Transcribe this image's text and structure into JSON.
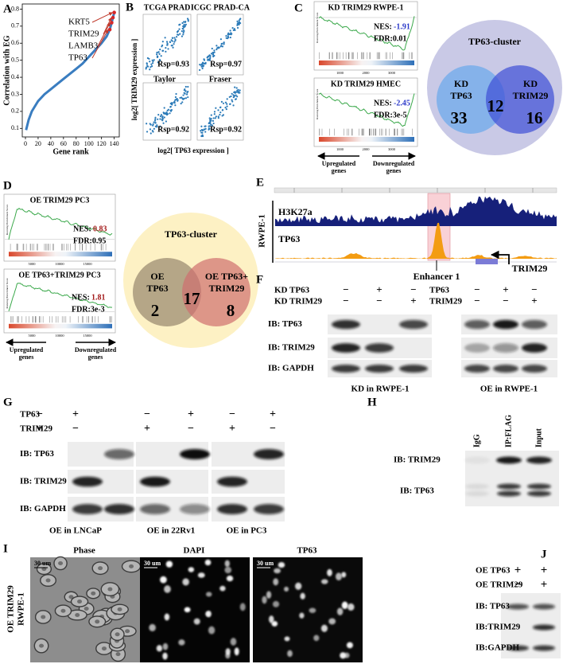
{
  "panels": {
    "A": {
      "letter": "A",
      "ylabel": "Correlation with EG",
      "xlabel": "Gene rank",
      "xlim": [
        -5,
        148
      ],
      "ylim": [
        0.05,
        0.83
      ],
      "xticks": [
        0,
        20,
        40,
        60,
        80,
        100,
        120,
        140
      ],
      "yticks": [
        0.1,
        0.2,
        0.3,
        0.4,
        0.5,
        0.6,
        0.7,
        0.8
      ],
      "genes": [
        "KRT5",
        "TRIM29",
        "LAMB3",
        "TP63"
      ],
      "curve": {
        "x": [
          1,
          5,
          10,
          20,
          30,
          40,
          50,
          60,
          70,
          80,
          90,
          100,
          110,
          120,
          128,
          133,
          136,
          138,
          140
        ],
        "y": [
          0.09,
          0.15,
          0.2,
          0.26,
          0.3,
          0.33,
          0.36,
          0.39,
          0.42,
          0.45,
          0.48,
          0.52,
          0.56,
          0.6,
          0.64,
          0.68,
          0.72,
          0.75,
          0.78
        ]
      }
    },
    "B": {
      "letter": "B",
      "columns": [
        "TCGA PRAD",
        "ICGC PRAD-CA"
      ],
      "datasets": [
        "Taylor",
        "Fraser"
      ],
      "stats": [
        "Rsp=0.93",
        "Rsp=0.97",
        "Rsp=0.92",
        "Rsp=0.92"
      ],
      "ylabel": "log2[ TRIM29 expression ]",
      "xlabel": "log2[ TP63 expression ]"
    },
    "C": {
      "letter": "C",
      "ylabel": "Running Enrichment Score",
      "xticks": [
        1000,
        2000,
        3000
      ],
      "gsea": [
        {
          "title": "KD TRIM29 RWPE-1",
          "nes_label": "NES:",
          "nes": -1.91,
          "fdr": "FDR:0.01"
        },
        {
          "title": "KD TRIM29 HMEC",
          "nes_label": "NES:",
          "nes": -2.45,
          "fdr": "FDR:3e-5"
        }
      ],
      "left_arrow": [
        "Upregulated",
        "genes"
      ],
      "right_arrow": [
        "Downregulated",
        "genes"
      ],
      "venn": {
        "title": "TP63-cluster",
        "left": [
          "KD",
          "TP63"
        ],
        "right": [
          "KD",
          "TRIM29"
        ],
        "counts": [
          33,
          12,
          16
        ]
      }
    },
    "D": {
      "letter": "D",
      "ylabel": "Running Enrichment Score",
      "xticks": [
        5000,
        10000,
        15000
      ],
      "gsea": [
        {
          "title": "OE TRIM29 PC3",
          "nes_label": "NES:",
          "nes": 0.83,
          "fdr": "FDR:0.95"
        },
        {
          "title": "OE TP63+TRIM29 PC3",
          "nes_label": "NES:",
          "nes": 1.81,
          "fdr": "FDR:3e-3"
        }
      ],
      "left_arrow": [
        "Upregulated",
        "genes"
      ],
      "right_arrow": [
        "Downregulated",
        "genes"
      ],
      "venn": {
        "title": "TP63-cluster",
        "left": [
          "OE",
          "TP63"
        ],
        "right": [
          "OE TP63+",
          "TRIM29"
        ],
        "counts": [
          2,
          17,
          8
        ]
      }
    },
    "E": {
      "letter": "E",
      "cell": "RWPE-1",
      "tracks": [
        "H3K27a",
        "TP63"
      ],
      "gene": "TRIM29",
      "region": "Enhancer 1"
    },
    "F": {
      "letter": "F",
      "kd": {
        "rows": [
          {
            "label": "KD TP63",
            "signs": [
              "−",
              "+",
              "−"
            ]
          },
          {
            "label": "KD TRIM29",
            "signs": [
              "−",
              "−",
              "+"
            ]
          }
        ],
        "caption": "KD in RWPE-1"
      },
      "oe": {
        "rows": [
          {
            "label": "TP63",
            "signs": [
              "−",
              "+",
              "−"
            ]
          },
          {
            "label": "TRIM29",
            "signs": [
              "−",
              "−",
              "+"
            ]
          }
        ],
        "caption": "OE in RWPE-1"
      },
      "blots": [
        "IB: TP63",
        "IB: TRIM29",
        "IB: GAPDH"
      ]
    },
    "G": {
      "letter": "G",
      "rows": [
        {
          "label": "TP63",
          "signs": [
            "−",
            "+",
            "−",
            "+",
            "−",
            "+"
          ]
        },
        {
          "label": "TRIM29",
          "signs": [
            "+",
            "−",
            "+",
            "−",
            "+",
            "−"
          ]
        }
      ],
      "blots": [
        "IB: TP63",
        "IB: TRIM29",
        "IB: GAPDH"
      ],
      "captions": [
        "OE in LNCaP",
        "OE in 22Rv1",
        "OE in PC3"
      ]
    },
    "H": {
      "letter": "H",
      "lanes": [
        "IgG",
        "IP:FLAG",
        "Input"
      ],
      "blots": [
        "IB: TRIM29",
        "IB: TP63"
      ]
    },
    "I": {
      "letter": "I",
      "channels": [
        "Phase",
        "DAPI",
        "TP63"
      ],
      "scale": "30 um",
      "sample": [
        "OE TRIM29",
        "RWPE-1"
      ]
    },
    "J": {
      "letter": "J",
      "rows": [
        {
          "label": "OE TP63",
          "signs": [
            "+",
            "+"
          ]
        },
        {
          "label": "OE TRIM29",
          "signs": [
            "−",
            "+"
          ]
        }
      ],
      "blots": [
        "IB: TP63",
        "IB:TRIM29",
        "IB:GAPDH"
      ]
    }
  }
}
